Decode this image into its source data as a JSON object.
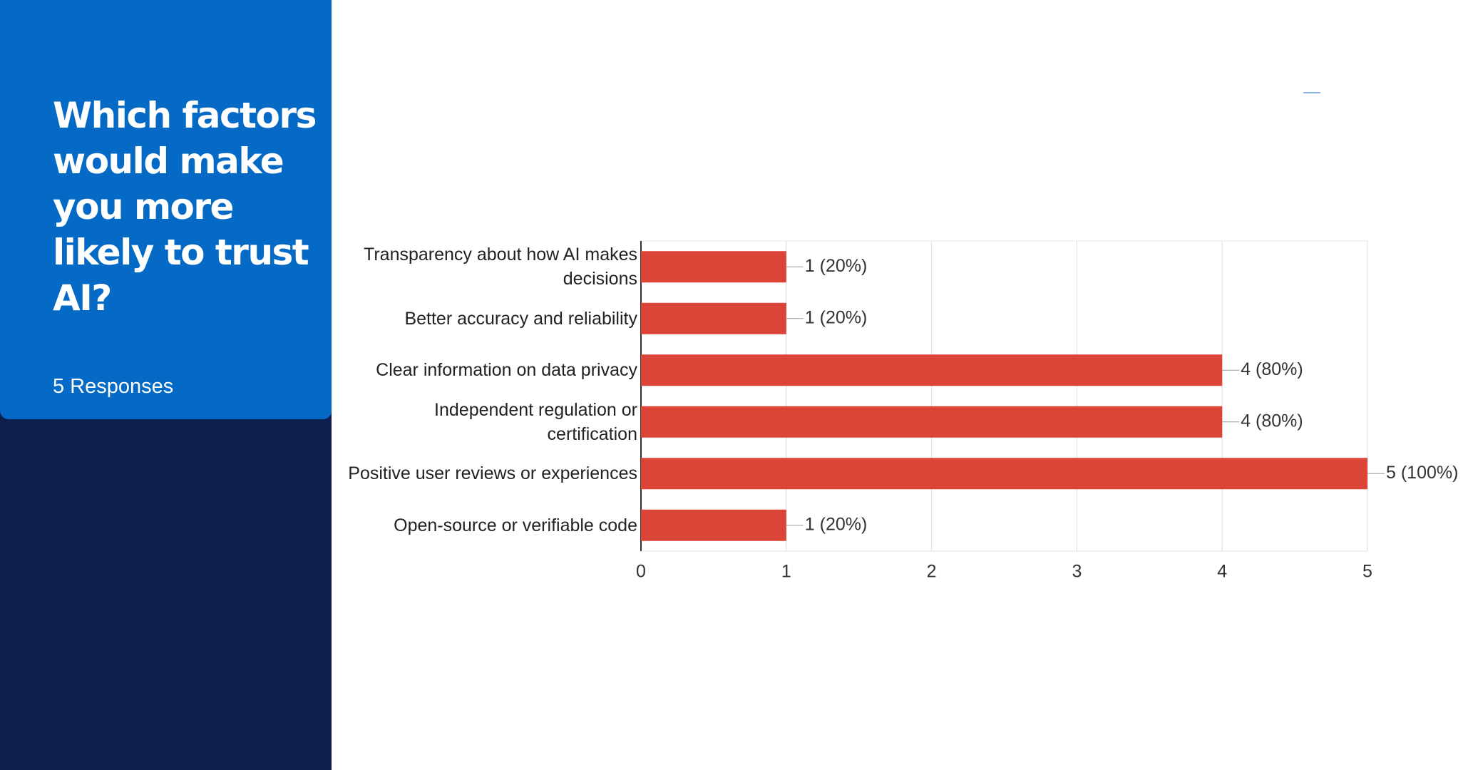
{
  "panel": {
    "title": "Which factors would make you more likely to trust AI?",
    "subtitle": "5 Responses"
  },
  "chart_data": {
    "type": "bar",
    "orientation": "horizontal",
    "categories": [
      "Transparency about how AI makes decisions",
      "Better accuracy and reliability",
      "Clear information on data privacy",
      "Independent regulation or certification",
      "Positive user reviews or experiences",
      "Open-source or verifiable code"
    ],
    "values": [
      1,
      1,
      4,
      4,
      5,
      1
    ],
    "value_labels": [
      "1 (20%)",
      "1 (20%)",
      "4 (80%)",
      "4 (80%)",
      "5 (100%)",
      "1 (20%)"
    ],
    "color": "#db4437",
    "xlim": [
      0,
      5
    ],
    "xticks": [
      0,
      1,
      2,
      3,
      4,
      5
    ],
    "grid": true
  }
}
